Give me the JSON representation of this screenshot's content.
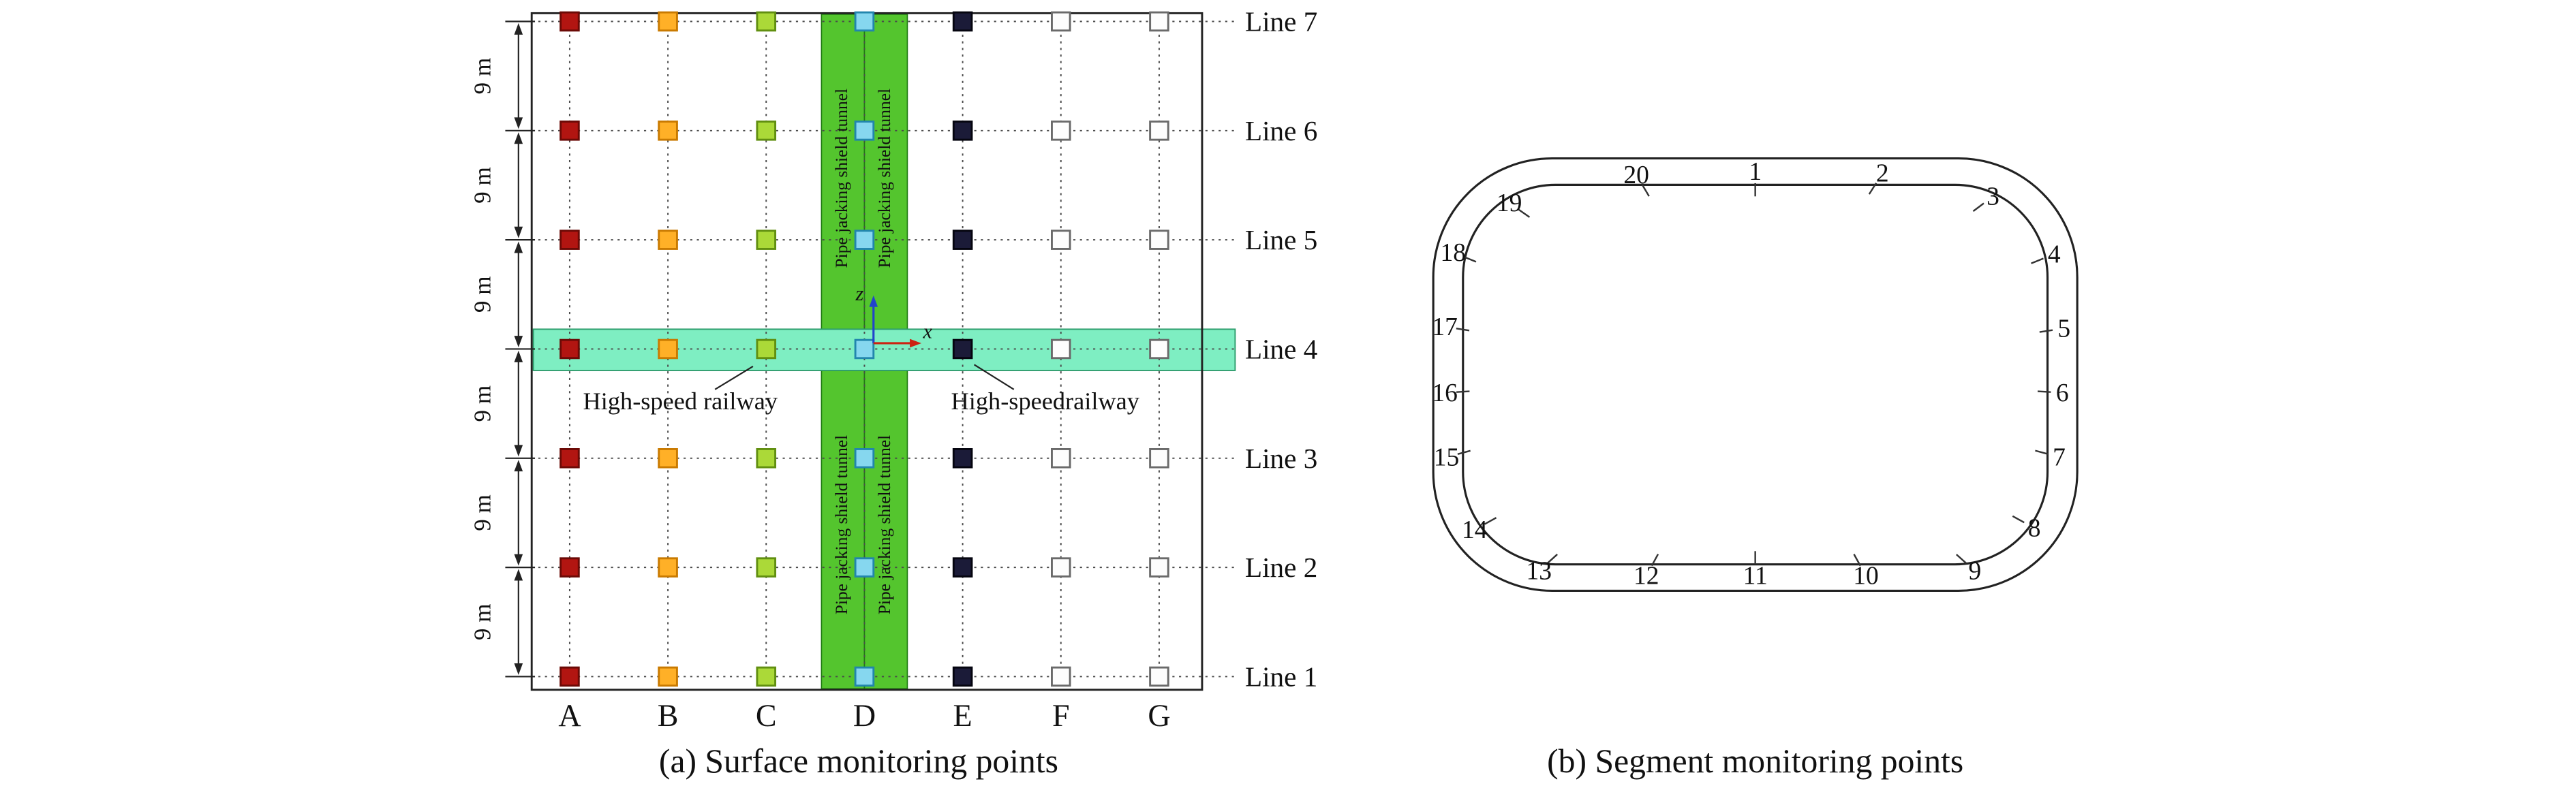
{
  "figure": {
    "panel_a": {
      "caption": "(a) Surface monitoring points",
      "column_labels": [
        "A",
        "B",
        "C",
        "D",
        "E",
        "F",
        "G"
      ],
      "line_labels": [
        "Line 7",
        "Line 6",
        "Line 5",
        "Line 4",
        "Line 3",
        "Line 2",
        "Line 1"
      ],
      "dimension_label": "9 m",
      "tunnel_band_label": "Pipe jacking shield tunnel",
      "railway_label_left": "High-speed railway",
      "railway_label_right": "High-speedrailway",
      "axis_z_label": "z",
      "axis_x_label": "x",
      "colors": {
        "border": "#222222",
        "grid": "#4a4a4a",
        "tunnel_band_fill": "#54c52e",
        "tunnel_band_stroke": "#1f7a12",
        "railway_band_fill": "#7eeec2",
        "railway_band_stroke": "#2f9e6e",
        "axis_z": "#2244cc",
        "axis_x": "#cc2211",
        "point_fills": [
          "#b21511",
          "#ffb027",
          "#abd938",
          "#86d7ef",
          "#1b1b38",
          "#fdfdfd",
          "#fdfdfd"
        ],
        "point_strokes": [
          "#6b0a06",
          "#c97a00",
          "#618f10",
          "#2286ad",
          "#05050f",
          "#6a6a6a",
          "#6a6a6a"
        ]
      }
    },
    "panel_b": {
      "caption": "(b) Segment monitoring points",
      "point_labels": [
        "1",
        "2",
        "3",
        "4",
        "5",
        "6",
        "7",
        "8",
        "9",
        "10",
        "11",
        "12",
        "13",
        "14",
        "15",
        "16",
        "17",
        "18",
        "19",
        "20"
      ],
      "colors": {
        "outline": "#222222",
        "tick": "#333333"
      }
    }
  }
}
